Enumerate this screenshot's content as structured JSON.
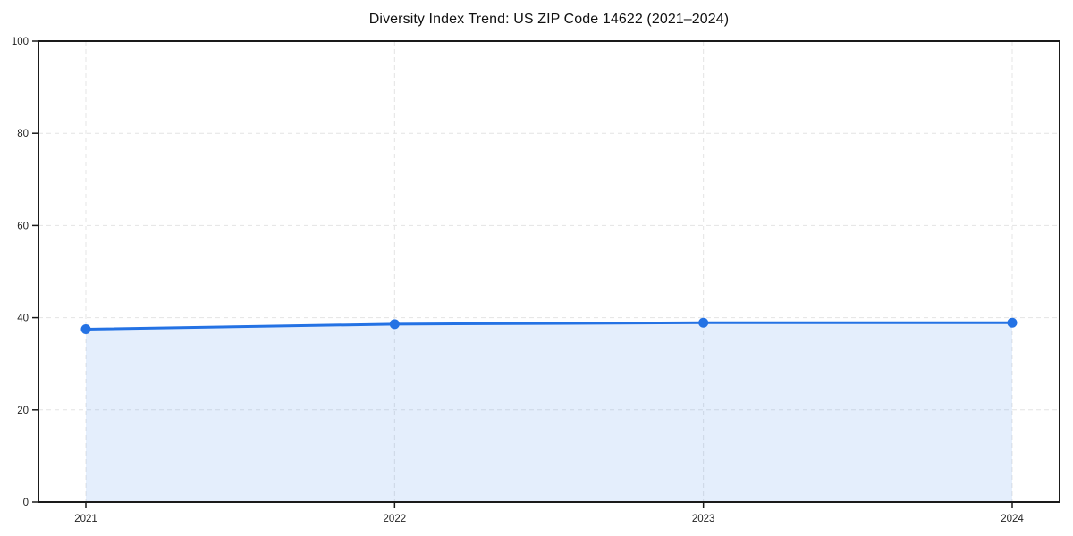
{
  "chart_data": {
    "type": "area",
    "title": "Diversity Index Trend: US ZIP Code 14622 (2021–2024)",
    "x": [
      2021,
      2022,
      2023,
      2024
    ],
    "xtick_labels": [
      "2021",
      "2022",
      "2023",
      "2024"
    ],
    "series": [
      {
        "name": "Diversity Index",
        "values": [
          37.5,
          38.6,
          38.9,
          38.9
        ]
      }
    ],
    "xlabel": "",
    "ylabel": "",
    "ylim": [
      0,
      100
    ],
    "yticks": [
      0,
      20,
      40,
      60,
      80,
      100
    ],
    "grid": "dashed-both-axes",
    "legend": "none",
    "colors": {
      "line": "#2472e4",
      "marker": "#2472e4",
      "fill": "rgba(36,114,228,0.12)",
      "grid": "#e4e4e4",
      "spine": "#1a1a1a",
      "tick_label": "#222222",
      "background": "#ffffff"
    }
  }
}
